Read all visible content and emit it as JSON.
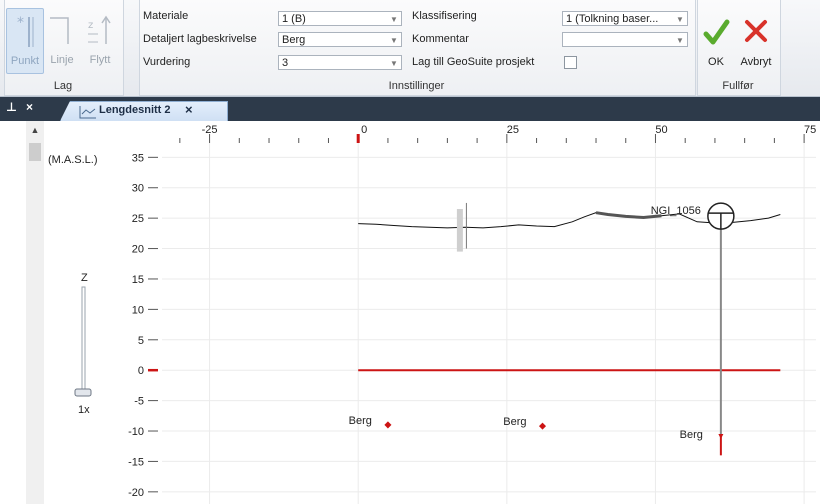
{
  "ribbon": {
    "lag_group": {
      "label": "Lag",
      "tools": [
        {
          "label": "Punkt",
          "active": true
        },
        {
          "label": "Linje",
          "active": false
        },
        {
          "label": "Flytt",
          "active": false
        }
      ]
    },
    "settings_group": {
      "label": "Innstillinger",
      "materiale_label": "Materiale",
      "materiale_value": "1 (B)",
      "detaljert_label": "Detaljert lagbeskrivelse",
      "detaljert_value": "Berg",
      "vurdering_label": "Vurdering",
      "vurdering_value": "3",
      "klassifisering_label": "Klassifisering",
      "klassifisering_value": "1 (Tolkning baser...",
      "kommentar_label": "Kommentar",
      "kommentar_value": "",
      "geosuite_label": "Lag till GeoSuite prosjekt",
      "geosuite_checked": false
    },
    "finish_group": {
      "label": "Fullfør",
      "ok_label": "OK",
      "cancel_label": "Avbryt",
      "ok_color": "#5aab2e",
      "cancel_color": "#d8322a"
    }
  },
  "tabs": {
    "pin_glyph": "᎑",
    "close_glyph": "×",
    "active_tab": "Lengdesnitt 2",
    "tab_close": "×"
  },
  "zoom": {
    "axis_label": "Z",
    "level": "1x"
  },
  "chart_data": {
    "type": "line",
    "y_unit_label": "(M.A.S.L.)",
    "x_ticks": [
      -25,
      0,
      25,
      50,
      75
    ],
    "y_ticks": [
      35,
      30,
      25,
      20,
      15,
      10,
      5,
      0,
      -5,
      -10,
      -15,
      -20
    ],
    "xlim": [
      -33,
      77
    ],
    "ylim": [
      -22,
      39
    ],
    "terrain_profile": {
      "x": [
        0,
        3,
        6,
        9,
        12,
        15,
        18,
        21,
        24,
        27,
        30,
        33,
        36,
        38,
        40,
        42,
        45,
        48,
        51,
        54,
        57,
        60,
        63,
        66,
        69,
        71
      ],
      "y": [
        24.1,
        24.0,
        23.8,
        23.6,
        23.5,
        23.4,
        23.5,
        23.4,
        23.6,
        23.9,
        23.7,
        23.6,
        24.4,
        25.2,
        25.9,
        25.6,
        25.3,
        25.1,
        25.4,
        25.7,
        24.4,
        24.2,
        24.3,
        24.6,
        25.0,
        25.6
      ]
    },
    "zero_line": {
      "x_from": 0,
      "x_to": 71,
      "y": 0,
      "color": "#cc1414"
    },
    "borehole": {
      "name": "NGI_1056",
      "x": 61,
      "top": 25.0,
      "bottom": -10.5,
      "end_marker": -14
    },
    "points": [
      {
        "label": "Berg",
        "x": 5,
        "y": -9
      },
      {
        "label": "Berg",
        "x": 31,
        "y": -9.2
      },
      {
        "label": "Berg",
        "x": 61,
        "y": -10.5
      }
    ],
    "marker_color": "#cc1414"
  }
}
